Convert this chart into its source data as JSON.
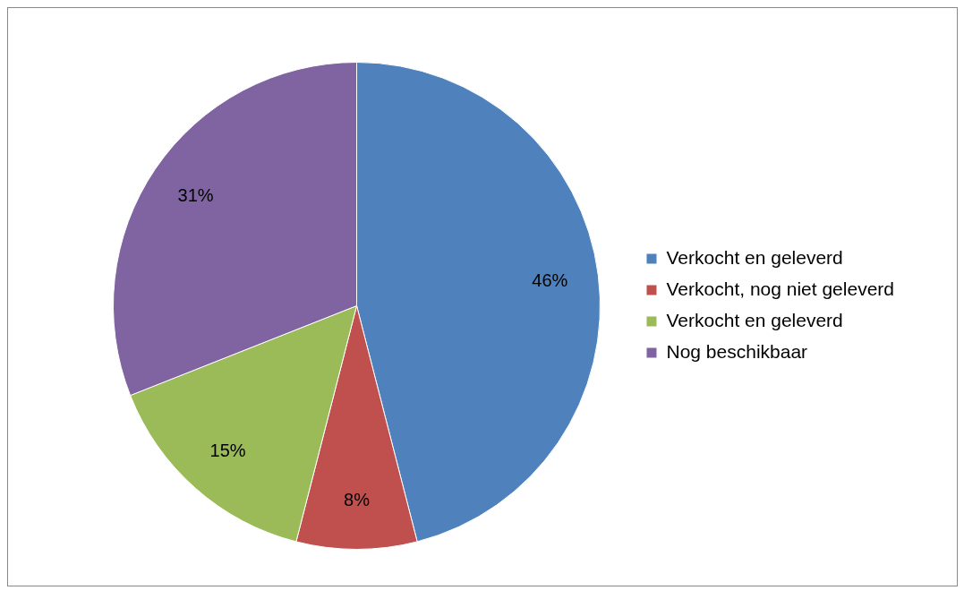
{
  "chart_data": {
    "type": "pie",
    "categories": [
      "Verkocht en geleverd",
      "Verkocht, nog niet geleverd",
      "Verkocht en geleverd",
      "Nog beschikbaar"
    ],
    "values": [
      46,
      8,
      15,
      31
    ],
    "colors": [
      "#4f81bd",
      "#c0504d",
      "#9bbb59",
      "#8064a2"
    ],
    "value_labels": [
      "46%",
      "8%",
      "15%",
      "31%"
    ],
    "legend": "right"
  }
}
